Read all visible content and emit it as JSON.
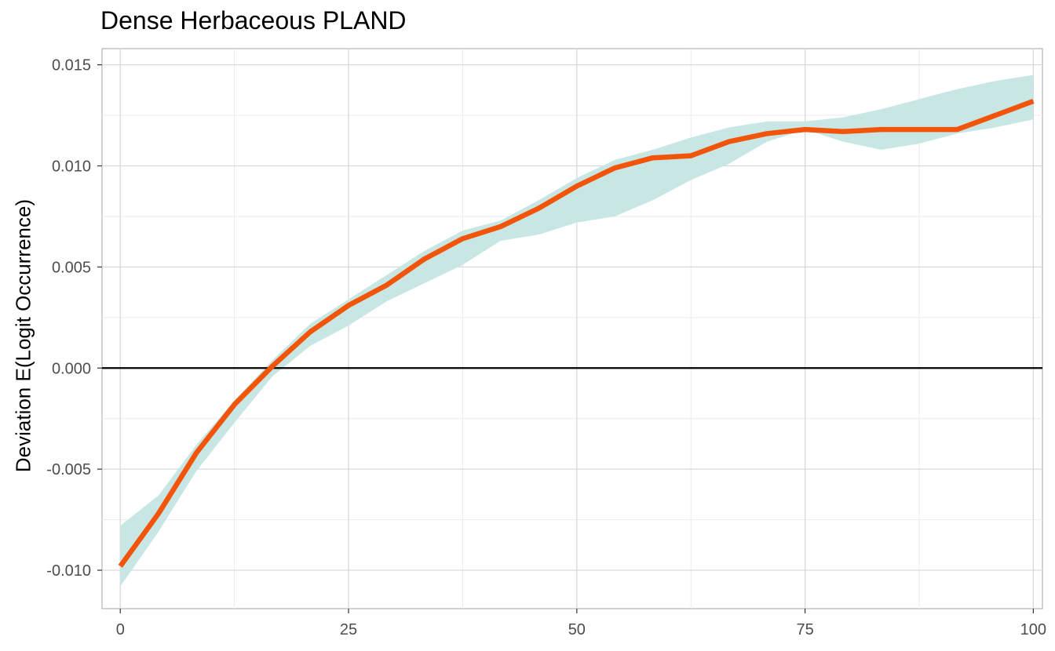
{
  "chart_data": {
    "type": "line",
    "title": "Dense Herbaceous PLAND",
    "xlabel": "",
    "ylabel": "Deviation E(Logit Occurrence)",
    "xlim": [
      -2,
      101
    ],
    "ylim": [
      -0.0119,
      0.0158
    ],
    "x_ticks": [
      0,
      25,
      50,
      75,
      100
    ],
    "x_tick_labels": [
      "0",
      "25",
      "50",
      "75",
      "100"
    ],
    "y_ticks": [
      -0.01,
      -0.005,
      0.0,
      0.005,
      0.01,
      0.015
    ],
    "y_tick_labels": [
      "-0.010",
      "-0.005",
      "0.000",
      "0.005",
      "0.010",
      "0.015"
    ],
    "grid": true,
    "reference_line_y": 0.0,
    "colors": {
      "line": "#f2550a",
      "band": "#c8e7e4",
      "reference": "#000000"
    },
    "series": [
      {
        "x": [
          0,
          4.17,
          8.33,
          12.5,
          16.67,
          20.83,
          25,
          29.17,
          33.33,
          37.5,
          41.67,
          45.83,
          50,
          54.17,
          58.33,
          62.5,
          66.67,
          70.83,
          75,
          79.17,
          83.33,
          87.5,
          91.67,
          95.83,
          100
        ],
        "values": [
          -0.0098,
          -0.0072,
          -0.0042,
          -0.0018,
          0.0001,
          0.0018,
          0.0031,
          0.0041,
          0.0054,
          0.0064,
          0.007,
          0.0079,
          0.009,
          0.0099,
          0.0104,
          0.0105,
          0.0112,
          0.0116,
          0.0118,
          0.0117,
          0.0118,
          0.0118,
          0.0118,
          0.0125,
          0.0132
        ],
        "lower": [
          -0.0108,
          -0.0081,
          -0.0051,
          -0.0027,
          -0.0004,
          0.0011,
          0.0021,
          0.0033,
          0.0042,
          0.0051,
          0.0063,
          0.0066,
          0.0072,
          0.0075,
          0.0083,
          0.0093,
          0.0101,
          0.0112,
          0.0118,
          0.0112,
          0.0108,
          0.0111,
          0.0116,
          0.0119,
          0.0123
        ],
        "upper": [
          -0.0078,
          -0.0063,
          -0.0038,
          -0.0016,
          0.0004,
          0.0022,
          0.0034,
          0.0046,
          0.0058,
          0.0068,
          0.0073,
          0.0083,
          0.0094,
          0.0103,
          0.0108,
          0.0114,
          0.0119,
          0.0122,
          0.0122,
          0.0124,
          0.0128,
          0.0133,
          0.0138,
          0.0142,
          0.0145
        ]
      }
    ]
  }
}
